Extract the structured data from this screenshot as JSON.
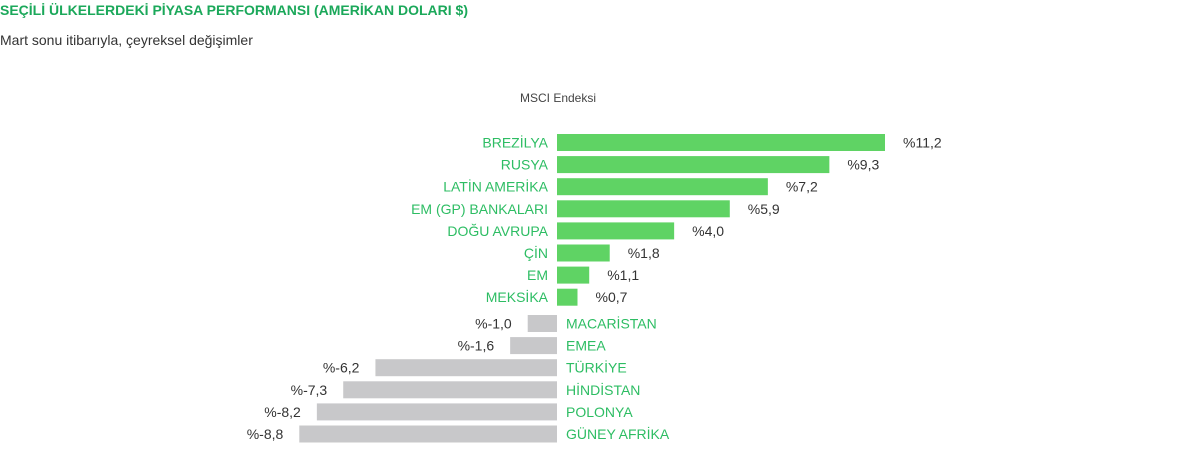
{
  "header": {
    "title": "SEÇİLİ ÜLKELERDEKİ PİYASA PERFORMANSI (AMERİKAN DOLARI $)",
    "subtitle": "Mart sonu itibarıyla, çeyreksel değişimler"
  },
  "chart_data": {
    "type": "bar",
    "orientation": "horizontal",
    "title": "SEÇİLİ ÜLKELERDEKİ PİYASA PERFORMANSI (AMERİKAN DOLARI $)",
    "subtitle": "Mart sonu itibarıyla, çeyreksel değişimler",
    "series_label": "MSCI Endeksi",
    "categories": [
      "BREZİLYA",
      "RUSYA",
      "LATİN AMERİKA",
      "EM (GP) BANKALARI",
      "DOĞU AVRUPA",
      "ÇİN",
      "EM",
      "MEKSİKA",
      "MACARİSTAN",
      "EMEA",
      "TÜRKİYE",
      "HİNDİSTAN",
      "POLONYA",
      "GÜNEY AFRİKA"
    ],
    "values": [
      11.2,
      9.3,
      7.2,
      5.9,
      4.0,
      1.8,
      1.1,
      0.7,
      -1.0,
      -1.6,
      -6.2,
      -7.3,
      -8.2,
      -8.8
    ],
    "value_labels": [
      "%11,2",
      "%9,3",
      "%7,2",
      "%5,9",
      "%4,0",
      "%1,8",
      "%1,1",
      "%0,7",
      "%-1,0",
      "%-1,6",
      "%-6,2",
      "%-7,3",
      "%-8,2",
      "%-8,8"
    ],
    "colors": {
      "positive": "#5fd364",
      "negative": "#c8c8ca",
      "label": "#2dbd63",
      "title": "#1ba85a"
    },
    "grid": false,
    "legend": "none"
  }
}
